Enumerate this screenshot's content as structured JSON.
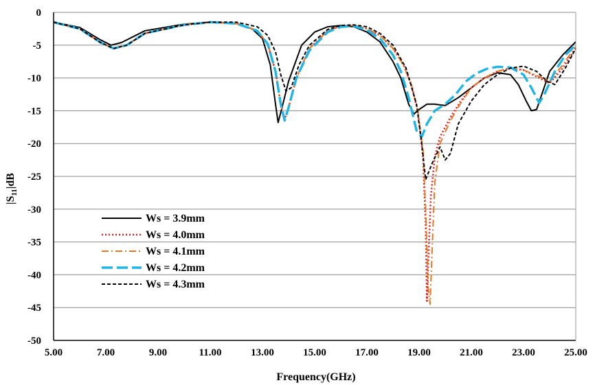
{
  "chart_data": {
    "type": "line",
    "title": "",
    "xlabel": "Frequency(GHz)",
    "ylabel_prefix": "|S",
    "ylabel_sub": "11",
    "ylabel_suffix": "|dB",
    "xlim": [
      5,
      25
    ],
    "ylim": [
      -50,
      0
    ],
    "x_ticks": [
      5,
      7,
      9,
      11,
      13,
      15,
      17,
      19,
      21,
      23,
      25
    ],
    "x_tick_labels": [
      "5.00",
      "7.00",
      "9.00",
      "11.00",
      "13.00",
      "15.00",
      "17.00",
      "19.00",
      "21.00",
      "23.00",
      "25.00"
    ],
    "y_ticks": [
      0,
      -5,
      -10,
      -15,
      -20,
      -25,
      -30,
      -35,
      -40,
      -45,
      -50
    ],
    "y_tick_labels": [
      "0",
      "-5",
      "-10",
      "-15",
      "-20",
      "-25",
      "-30",
      "-35",
      "-40",
      "-45",
      "-50"
    ],
    "grid": "horizontal",
    "legend_position": "lower-left",
    "series": [
      {
        "name": "Ws = 3.9mm",
        "color": "#000000",
        "dash": "solid",
        "x": [
          5.0,
          6.0,
          6.8,
          7.2,
          7.6,
          8.5,
          10.0,
          11.0,
          12.0,
          12.6,
          13.0,
          13.3,
          13.5,
          13.6,
          13.75,
          14.0,
          14.5,
          15.0,
          15.5,
          16.0,
          16.5,
          17.0,
          17.5,
          18.0,
          18.3,
          18.6,
          18.8,
          19.0,
          19.3,
          19.6,
          20.0,
          20.5,
          21.0,
          21.5,
          22.0,
          22.5,
          22.8,
          23.1,
          23.3,
          23.5,
          23.7,
          24.0,
          24.5,
          25.0
        ],
        "y": [
          -1.5,
          -2.3,
          -4.2,
          -5.0,
          -4.6,
          -2.8,
          -1.8,
          -1.5,
          -1.7,
          -2.5,
          -4.0,
          -8.0,
          -14.0,
          -16.8,
          -14.5,
          -10.5,
          -5.0,
          -3.0,
          -2.2,
          -2.0,
          -2.2,
          -3.0,
          -4.5,
          -7.5,
          -10.0,
          -14.0,
          -15.5,
          -14.8,
          -14.0,
          -14.0,
          -14.2,
          -13.0,
          -11.5,
          -10.0,
          -9.2,
          -9.5,
          -11.0,
          -13.5,
          -15.0,
          -14.8,
          -12.5,
          -9.0,
          -6.5,
          -4.5
        ]
      },
      {
        "name": "Ws = 4.0mm",
        "color": "#e02020",
        "dash": "dot",
        "x": [
          5.0,
          6.0,
          6.8,
          7.3,
          7.8,
          8.5,
          10.0,
          11.0,
          12.0,
          12.8,
          13.2,
          13.5,
          13.7,
          13.85,
          14.0,
          14.3,
          14.8,
          15.5,
          16.0,
          16.5,
          17.0,
          17.5,
          18.0,
          18.4,
          18.7,
          18.95,
          19.15,
          19.25,
          19.3,
          19.35,
          19.45,
          19.6,
          19.8,
          20.2,
          20.6,
          21.0,
          21.5,
          22.0,
          22.5,
          23.0,
          23.5,
          24.0,
          24.5,
          25.0
        ],
        "y": [
          -1.5,
          -2.5,
          -4.6,
          -5.5,
          -5.0,
          -3.2,
          -1.9,
          -1.5,
          -1.7,
          -2.8,
          -4.8,
          -9.0,
          -14.0,
          -16.3,
          -14.5,
          -10.0,
          -5.5,
          -2.8,
          -2.1,
          -2.0,
          -2.5,
          -3.5,
          -5.5,
          -8.0,
          -11.0,
          -15.0,
          -22.0,
          -32.0,
          -44.0,
          -38.0,
          -28.0,
          -22.0,
          -19.0,
          -16.0,
          -13.5,
          -11.5,
          -10.0,
          -9.0,
          -8.5,
          -8.8,
          -9.8,
          -10.8,
          -8.5,
          -5.5
        ]
      },
      {
        "name": "Ws = 4.1mm",
        "color": "#e87722",
        "dash": "dashdot",
        "x": [
          5.0,
          6.0,
          6.8,
          7.3,
          7.8,
          8.5,
          10.0,
          11.0,
          12.0,
          12.8,
          13.2,
          13.5,
          13.7,
          13.85,
          14.0,
          14.3,
          14.8,
          15.5,
          16.0,
          16.5,
          17.0,
          17.5,
          18.0,
          18.4,
          18.7,
          18.95,
          19.15,
          19.25,
          19.35,
          19.42,
          19.5,
          19.6,
          19.8,
          20.2,
          20.6,
          21.0,
          21.5,
          22.0,
          22.5,
          23.0,
          23.5,
          24.0,
          24.5,
          25.0
        ],
        "y": [
          -1.5,
          -2.5,
          -4.6,
          -5.5,
          -5.0,
          -3.2,
          -1.9,
          -1.5,
          -1.7,
          -2.8,
          -4.8,
          -9.0,
          -14.0,
          -16.3,
          -14.5,
          -10.0,
          -5.5,
          -2.8,
          -2.1,
          -2.0,
          -2.5,
          -3.5,
          -5.5,
          -8.0,
          -11.0,
          -15.0,
          -21.0,
          -30.0,
          -42.0,
          -44.5,
          -36.0,
          -26.0,
          -20.0,
          -16.5,
          -13.8,
          -11.5,
          -10.0,
          -9.0,
          -8.5,
          -8.8,
          -9.6,
          -10.5,
          -8.0,
          -5.2
        ]
      },
      {
        "name": "Ws = 4.2mm",
        "color": "#1fb4e6",
        "dash": "longdash",
        "x": [
          5.0,
          6.0,
          6.8,
          7.3,
          7.8,
          8.5,
          10.0,
          11.0,
          12.0,
          12.8,
          13.2,
          13.5,
          13.7,
          13.85,
          14.0,
          14.3,
          14.8,
          15.5,
          16.0,
          16.5,
          17.0,
          17.5,
          18.0,
          18.3,
          18.6,
          18.9,
          19.1,
          19.3,
          19.6,
          20.0,
          20.4,
          20.8,
          21.2,
          21.6,
          22.0,
          22.5,
          23.0,
          23.3,
          23.6,
          23.8,
          24.2,
          24.6,
          25.0
        ],
        "y": [
          -1.5,
          -2.5,
          -4.6,
          -5.5,
          -5.0,
          -3.2,
          -1.9,
          -1.5,
          -1.7,
          -2.8,
          -4.8,
          -9.0,
          -14.0,
          -16.5,
          -14.5,
          -10.0,
          -5.8,
          -3.0,
          -2.2,
          -2.1,
          -2.7,
          -4.0,
          -6.5,
          -9.0,
          -13.0,
          -18.0,
          -19.0,
          -17.0,
          -15.0,
          -14.0,
          -12.5,
          -10.5,
          -9.3,
          -8.6,
          -8.3,
          -8.4,
          -9.5,
          -11.5,
          -13.8,
          -12.5,
          -9.0,
          -6.5,
          -5.0
        ]
      },
      {
        "name": "Ws = 4.3mm",
        "color": "#000000",
        "dash": "dash",
        "x": [
          5.0,
          6.0,
          6.8,
          7.3,
          7.8,
          8.5,
          10.0,
          11.0,
          12.0,
          12.8,
          13.2,
          13.5,
          13.7,
          13.9,
          14.1,
          14.4,
          14.8,
          15.5,
          16.0,
          16.5,
          17.0,
          17.5,
          18.0,
          18.5,
          18.9,
          19.1,
          19.25,
          19.5,
          19.8,
          20.0,
          20.2,
          20.5,
          21.0,
          21.5,
          22.0,
          22.5,
          23.0,
          23.5,
          23.9,
          24.2,
          24.6,
          25.0
        ],
        "y": [
          -1.5,
          -2.5,
          -4.6,
          -5.5,
          -5.0,
          -3.2,
          -1.9,
          -1.5,
          -1.5,
          -2.2,
          -3.5,
          -6.0,
          -9.5,
          -12.0,
          -11.5,
          -8.0,
          -5.0,
          -2.6,
          -2.0,
          -1.9,
          -2.2,
          -3.2,
          -5.0,
          -8.5,
          -14.0,
          -20.0,
          -25.5,
          -23.0,
          -20.5,
          -22.5,
          -21.5,
          -17.0,
          -13.5,
          -11.0,
          -9.5,
          -8.5,
          -8.2,
          -9.0,
          -10.5,
          -11.0,
          -8.5,
          -5.5
        ]
      }
    ]
  }
}
